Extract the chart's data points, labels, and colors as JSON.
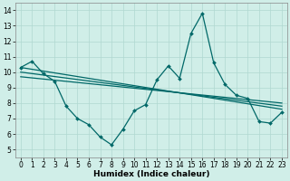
{
  "xlabel": "Humidex (Indice chaleur)",
  "xlim": [
    -0.5,
    23.5
  ],
  "ylim": [
    4.5,
    14.5
  ],
  "yticks": [
    5,
    6,
    7,
    8,
    9,
    10,
    11,
    12,
    13,
    14
  ],
  "xticks": [
    0,
    1,
    2,
    3,
    4,
    5,
    6,
    7,
    8,
    9,
    10,
    11,
    12,
    13,
    14,
    15,
    16,
    17,
    18,
    19,
    20,
    21,
    22,
    23
  ],
  "background_color": "#d0eee8",
  "grid_color": "#b0d8d0",
  "line_color": "#006868",
  "line1_x": [
    0,
    1,
    2,
    3,
    4,
    5,
    6,
    7,
    8,
    9,
    10,
    11,
    12,
    13,
    14,
    15,
    16,
    17,
    18,
    19,
    20,
    21,
    22,
    23
  ],
  "line1_y": [
    10.3,
    10.7,
    9.9,
    9.4,
    7.8,
    7.0,
    6.6,
    5.8,
    5.3,
    6.3,
    7.5,
    7.9,
    9.5,
    10.4,
    9.6,
    12.5,
    13.8,
    10.6,
    9.2,
    8.5,
    8.3,
    6.8,
    6.7,
    7.4
  ],
  "line2_x": [
    0,
    23
  ],
  "line2_y": [
    10.3,
    7.6
  ],
  "line3_x": [
    0,
    23
  ],
  "line3_y": [
    10.0,
    7.8
  ],
  "line4_x": [
    0,
    23
  ],
  "line4_y": [
    9.7,
    8.0
  ],
  "tick_fontsize": 5.5,
  "xlabel_fontsize": 6.5,
  "xlabel_fontweight": "bold"
}
